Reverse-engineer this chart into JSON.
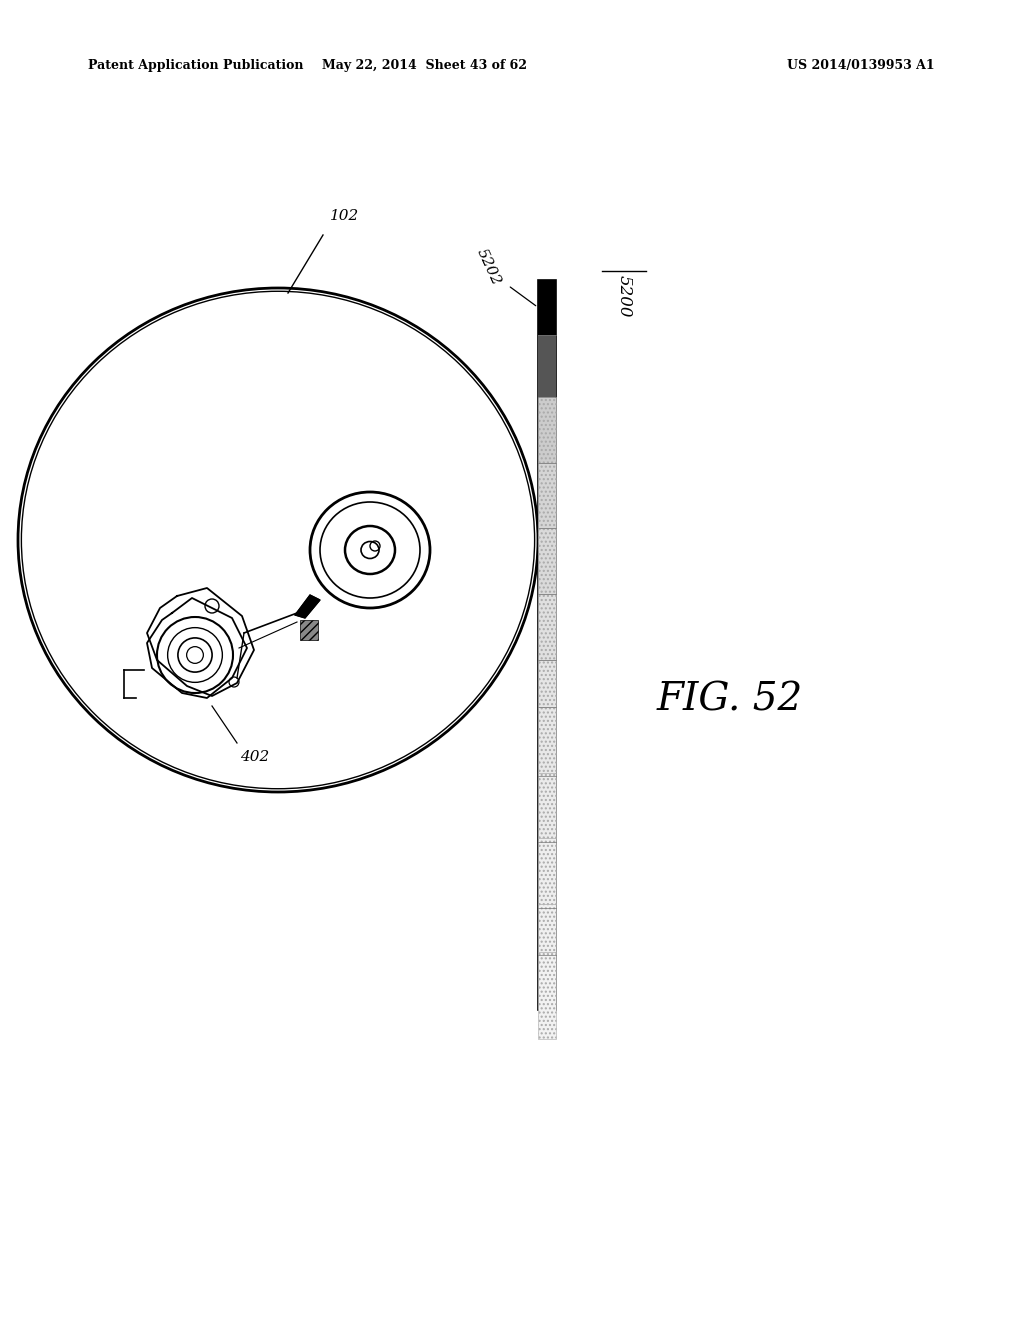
{
  "header_left": "Patent Application Publication",
  "header_mid": "May 22, 2014  Sheet 43 of 62",
  "header_right": "US 2014/0139953 A1",
  "fig_label": "FIG. 52",
  "label_102": "102",
  "label_402": "402",
  "label_5200": "5200",
  "label_5202": "5202",
  "background_color": "#ffffff",
  "line_color": "#000000"
}
